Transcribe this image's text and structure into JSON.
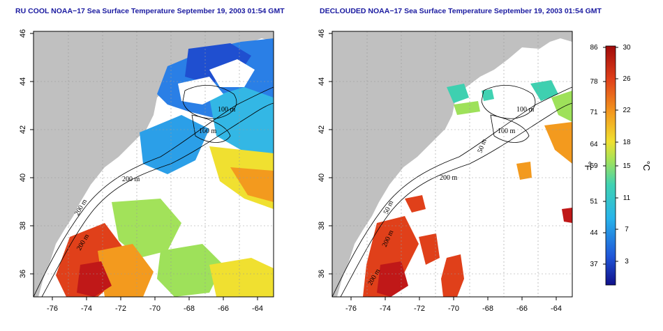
{
  "titles": {
    "left": "RU COOL NOAA−17 Sea Surface Temperature September 19, 2003 01:54 GMT",
    "right": "DECLOUDED NOAA−17 Sea Surface Temperature September 19, 2003 01:54 GMT"
  },
  "axes": {
    "lon_ticks": [
      "-76",
      "-74",
      "-72",
      "-70",
      "-68",
      "-66",
      "-64"
    ],
    "lat_ticks": [
      "46",
      "44",
      "42",
      "40",
      "38",
      "36"
    ]
  },
  "contours": {
    "labels": [
      "100 m",
      "100 m",
      "50 m",
      "200 m",
      "200 m",
      "200 m",
      "50 m"
    ]
  },
  "colorbar": {
    "fahrenheit": [
      "86",
      "78",
      "71",
      "64",
      "59",
      "51",
      "44",
      "37"
    ],
    "celsius": [
      "30",
      "26",
      "22",
      "18",
      "15",
      "11",
      "7",
      "3"
    ],
    "unit_f": "°F",
    "unit_c": "°C",
    "colors": [
      "#1a1aa0",
      "#2f6fe0",
      "#29b6e6",
      "#3ed0b0",
      "#9ee15a",
      "#f0e030",
      "#f39a1e",
      "#e0401a",
      "#b01010"
    ]
  },
  "colors": {
    "land": "#c0c0c0",
    "ocean_cloud": "#ffffff"
  }
}
